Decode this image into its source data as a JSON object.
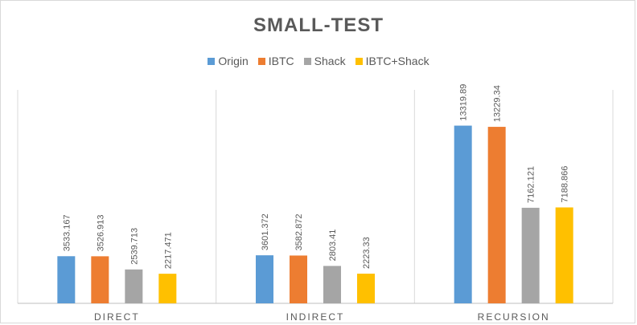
{
  "chart_data": {
    "type": "bar",
    "title": "SMALL-TEST",
    "categories": [
      "DIRECT",
      "INDIRECT",
      "RECURSION"
    ],
    "series": [
      {
        "name": "Origin",
        "color": "#5b9bd5",
        "values": [
          3533.167,
          3601.372,
          13319.89
        ]
      },
      {
        "name": "IBTC",
        "color": "#ed7d31",
        "values": [
          3526.913,
          3582.872,
          13229.34
        ]
      },
      {
        "name": "Shack",
        "color": "#a5a5a5",
        "values": [
          2539.713,
          2803.41,
          7162.121
        ]
      },
      {
        "name": "IBTC+Shack",
        "color": "#ffc000",
        "values": [
          2217.471,
          2223.33,
          7188.866
        ]
      }
    ],
    "value_labels": [
      [
        "3533.167",
        "3601.372",
        "13319.89"
      ],
      [
        "3526.913",
        "3582.872",
        "13229.34"
      ],
      [
        "2539.713",
        "2803.41",
        "7162.121"
      ],
      [
        "2217.471",
        "2223.33",
        "7188.866"
      ]
    ],
    "ylim": [
      0,
      16000
    ],
    "legend_position": "top",
    "gridlines": "vertical category separators"
  }
}
